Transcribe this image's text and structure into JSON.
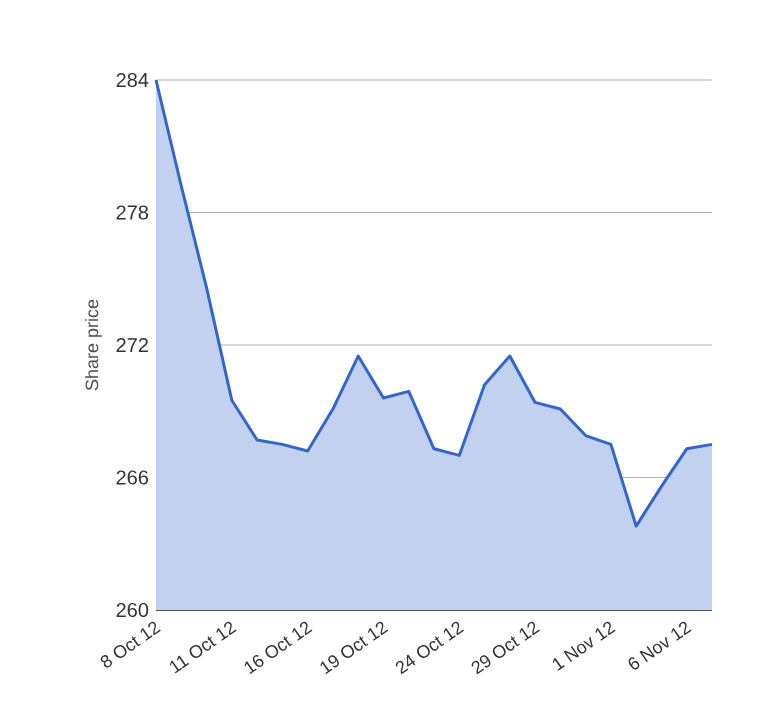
{
  "chart_data": {
    "type": "area",
    "ylabel": "Share price",
    "categories": [
      "8 Oct 12",
      null,
      null,
      "11 Oct 12",
      null,
      null,
      "16 Oct 12",
      null,
      null,
      "19 Oct 12",
      null,
      null,
      "24 Oct 12",
      null,
      null,
      "29 Oct 12",
      null,
      null,
      "1 Nov 12",
      null,
      null,
      "6 Nov 12",
      null
    ],
    "series": [
      {
        "color": "#3366cc",
        "values": [
          284,
          279.2,
          274.6,
          269.5,
          267.7,
          267.5,
          267.2,
          269.1,
          271.5,
          269.6,
          269.9,
          267.3,
          267.0,
          270.2,
          271.5,
          269.4,
          269.1,
          267.9,
          267.5,
          263.8,
          265.6,
          267.3,
          267.5
        ]
      }
    ],
    "ylim": [
      260,
      284
    ],
    "yticks": [
      260,
      266,
      272,
      278,
      284
    ],
    "grid": "y"
  }
}
